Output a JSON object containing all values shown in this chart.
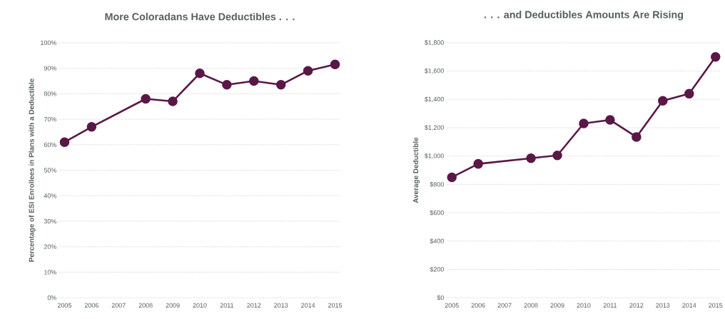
{
  "chart_data": [
    {
      "type": "line",
      "title": "More Coloradans Have Deductibles . . .",
      "ylabel": "Percentage of ESI Enrollees in Plans with a Deductible",
      "x": [
        2005,
        2006,
        2008,
        2009,
        2010,
        2011,
        2012,
        2013,
        2014,
        2015
      ],
      "values": [
        61,
        67,
        78,
        77,
        88,
        83.5,
        85,
        83.5,
        89,
        91.5
      ],
      "color": "#5a1846",
      "marker": "circle",
      "grid": "y",
      "xlim": [
        2004.8,
        2015.2
      ],
      "xticks": [
        2005,
        2006,
        2007,
        2008,
        2009,
        2010,
        2011,
        2012,
        2013,
        2014,
        2015
      ],
      "ylim": [
        0,
        100
      ],
      "yticks": [
        {
          "value": 0,
          "label": "0%"
        },
        {
          "value": 10,
          "label": "10%"
        },
        {
          "value": 20,
          "label": "20%"
        },
        {
          "value": 30,
          "label": "30%"
        },
        {
          "value": 40,
          "label": "40%"
        },
        {
          "value": 50,
          "label": "50%"
        },
        {
          "value": 60,
          "label": "60%"
        },
        {
          "value": 70,
          "label": "70%"
        },
        {
          "value": 80,
          "label": "80%"
        },
        {
          "value": 90,
          "label": "90%"
        },
        {
          "value": 100,
          "label": "100%"
        }
      ]
    },
    {
      "type": "line",
      "title": ". . . and Deductibles Amounts Are Rising",
      "ylabel": "Average Deductible",
      "x": [
        2005,
        2006,
        2008,
        2009,
        2010,
        2011,
        2012,
        2013,
        2014,
        2015
      ],
      "values": [
        850,
        945,
        985,
        1005,
        1230,
        1255,
        1135,
        1390,
        1440,
        1700
      ],
      "color": "#5a1846",
      "marker": "circle",
      "grid": "y",
      "xlim": [
        2004.8,
        2015.2
      ],
      "xticks": [
        2005,
        2006,
        2007,
        2008,
        2009,
        2010,
        2011,
        2012,
        2013,
        2014,
        2015
      ],
      "ylim": [
        0,
        1800
      ],
      "yticks": [
        {
          "value": 0,
          "label": "$0"
        },
        {
          "value": 200,
          "label": "$200"
        },
        {
          "value": 400,
          "label": "$400"
        },
        {
          "value": 600,
          "label": "$600"
        },
        {
          "value": 800,
          "label": "$800"
        },
        {
          "value": 1000,
          "label": "$1,000"
        },
        {
          "value": 1200,
          "label": "$1,200"
        },
        {
          "value": 1400,
          "label": "$1,400"
        },
        {
          "value": 1600,
          "label": "$1,600"
        },
        {
          "value": 1800,
          "label": "$1,800"
        }
      ]
    }
  ]
}
